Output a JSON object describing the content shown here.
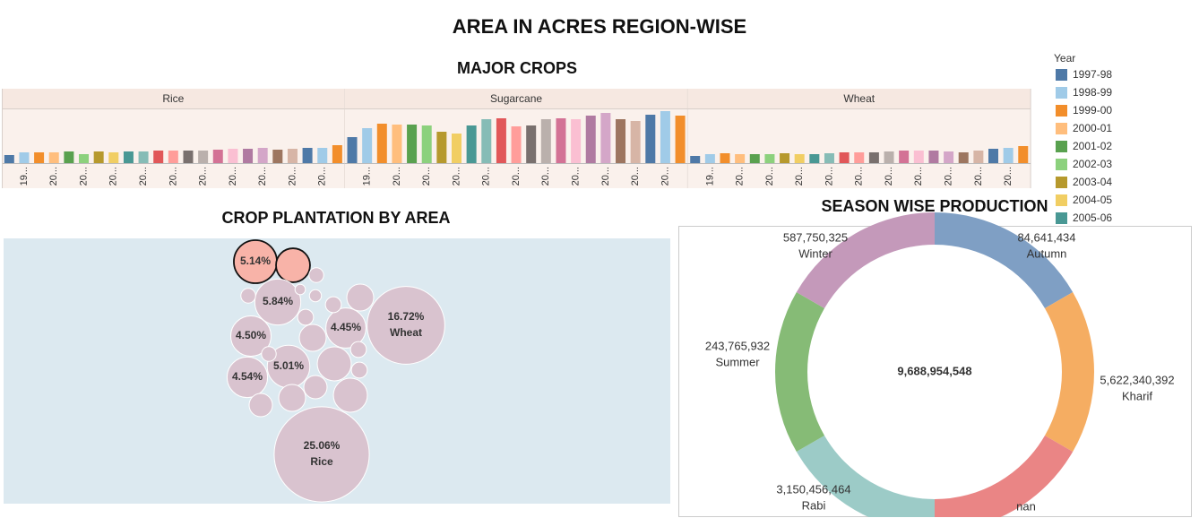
{
  "title": "AREA IN ACRES REGION-WISE",
  "legend": {
    "title": "Year",
    "items": [
      {
        "name": "1997-98",
        "color": "#4e79a7"
      },
      {
        "name": "1998-99",
        "color": "#a0cbe8"
      },
      {
        "name": "1999-00",
        "color": "#f28e2b"
      },
      {
        "name": "2000-01",
        "color": "#ffbe7d"
      },
      {
        "name": "2001-02",
        "color": "#59a14f"
      },
      {
        "name": "2002-03",
        "color": "#8cd17d"
      },
      {
        "name": "2003-04",
        "color": "#b6992d"
      },
      {
        "name": "2004-05",
        "color": "#f1ce63"
      },
      {
        "name": "2005-06",
        "color": "#499894"
      }
    ]
  },
  "chart_data": [
    {
      "type": "bar",
      "title": "MAJOR CROPS",
      "categories": [
        null,
        "19...",
        null,
        "20...",
        null,
        "20...",
        null,
        "20...",
        null,
        "20...",
        null,
        "20...",
        null,
        "20...",
        null,
        "20...",
        null,
        "20...",
        null,
        "20...",
        null,
        "20...",
        null
      ],
      "colors": [
        "#4e79a7",
        "#a0cbe8",
        "#f28e2b",
        "#ffbe7d",
        "#59a14f",
        "#8cd17d",
        "#b6992d",
        "#f1ce63",
        "#499894",
        "#86bcb6",
        "#e15759",
        "#ff9d9a",
        "#79706e",
        "#bab0ac",
        "#d37295",
        "#fabfd2",
        "#b07aa1",
        "#d4a6c8",
        "#9d7660",
        "#d7b5a6",
        "#4e79a7",
        "#a0cbe8",
        "#f28e2b"
      ],
      "ylim": [
        0,
        60
      ],
      "series": [
        {
          "name": "Rice",
          "values": [
            9,
            12,
            12,
            12,
            13,
            10,
            13,
            12,
            13,
            13,
            14,
            14,
            14,
            14,
            15,
            16,
            16,
            17,
            15,
            16,
            17,
            17,
            20
          ]
        },
        {
          "name": "Sugarcane",
          "values": [
            29,
            39,
            44,
            43,
            43,
            42,
            35,
            33,
            42,
            49,
            50,
            41,
            42,
            49,
            50,
            49,
            53,
            56,
            49,
            47,
            54,
            58,
            53
          ]
        },
        {
          "name": "Wheat",
          "values": [
            8,
            10,
            11,
            10,
            10,
            10,
            11,
            10,
            10,
            11,
            12,
            12,
            12,
            13,
            14,
            14,
            14,
            13,
            12,
            14,
            16,
            17,
            19
          ]
        }
      ]
    },
    {
      "type": "bubble",
      "title": "CROP PLANTATION BY AREA",
      "values": [
        5.14,
        3.2,
        5.84,
        16.72,
        4.45,
        4.5,
        5.01,
        4.54,
        25.06,
        2.0,
        3.2,
        3.2,
        2.0,
        1.5,
        1.5,
        2.0,
        0.6,
        0.7,
        0.7,
        0.7,
        0.7,
        0.6,
        0.4,
        0.6,
        0.3
      ],
      "value_labels": [
        "5.14%",
        null,
        "5.84%",
        "16.72%",
        "4.45%",
        "4.50%",
        "5.01%",
        "4.54%",
        "25.06%",
        null,
        null,
        null,
        null,
        null,
        null,
        null,
        null,
        null,
        null,
        null,
        null,
        null,
        null,
        null,
        null
      ],
      "names": [
        null,
        null,
        null,
        "Wheat",
        null,
        null,
        null,
        null,
        "Rice",
        null,
        null,
        null,
        null,
        null,
        null,
        null,
        null,
        null,
        null,
        null,
        null,
        null,
        null,
        null,
        null
      ],
      "colors": [
        "#f8b3a8",
        "#f8b3a8",
        "#d9c3cf",
        "#d9c3cf",
        "#d9c3cf",
        "#d9c3cf",
        "#d9c3cf",
        "#d9c3cf",
        "#d9c3cf",
        "#d9c3cf",
        "#d9c3cf",
        "#d9c3cf",
        "#d9c3cf",
        "#d9c3cf",
        "#d9c3cf",
        "#d9c3cf",
        "#d9c3cf",
        "#d9c3cf",
        "#d9c3cf",
        "#d9c3cf",
        "#d9c3cf",
        "#d9c3cf",
        "#d9c3cf",
        "#d9c3cf",
        "#d9c3cf"
      ]
    },
    {
      "type": "pie",
      "title": "SEASON WISE PRODUCTION",
      "total_label": "9,688,954,548",
      "categories": [
        "Autumn",
        "Kharif",
        "nan",
        "Rabi",
        "Summer",
        "Winter"
      ],
      "values": [
        84641434,
        5622340392,
        null,
        3150456464,
        243765932,
        587750325
      ],
      "value_labels": [
        "84,641,434",
        "5,622,340,392",
        null,
        "3,150,456,464",
        "243,765,932",
        "587,750,325"
      ],
      "slice_sizes": [
        1,
        1,
        1,
        1,
        1,
        1
      ],
      "colors": [
        "#7f9fc4",
        "#f5ad62",
        "#ea8585",
        "#9ccbc7",
        "#86bb76",
        "#c499ba"
      ]
    }
  ]
}
